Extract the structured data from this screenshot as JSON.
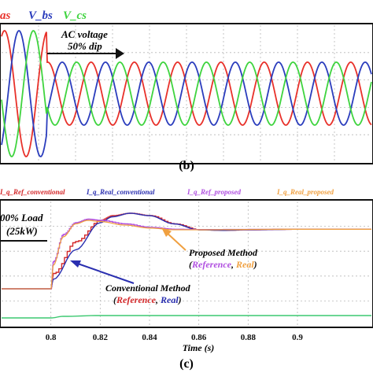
{
  "colors": {
    "phase_a": "#e8312a",
    "phase_b": "#2b3dbd",
    "phase_c": "#3fd43f",
    "ref_conventional": "#d4282a",
    "real_conventional": "#2a2fb0",
    "ref_proposed": "#b04fe0",
    "real_proposed": "#f0a040",
    "bottom_trace": "#3cc870",
    "arrow": "#111111"
  },
  "top_panel": {
    "legend": {
      "vas": "as",
      "vbs": "V_bs",
      "vcs": "V_cs"
    },
    "annotation": {
      "line1": "AC voltage",
      "line2": "50% dip"
    },
    "caption": "(b)"
  },
  "bottom_panel": {
    "legend": {
      "ref_conventional": "I_q_Ref_conventional",
      "real_conventional": "I_q_Real_conventional",
      "ref_proposed": "I_q_Ref_proposed",
      "real_proposed": "I_q_Real_proposed"
    },
    "load_label": {
      "line1": "00% Load",
      "line2": "(25kW)"
    },
    "proposed_label": {
      "line1": "Proposed Method",
      "open": "(",
      "ref": "Reference",
      "sep": ", ",
      "real": "Real",
      "close": ")"
    },
    "conventional_label": {
      "line1": "Conventional Method",
      "open": "(",
      "ref": "Reference",
      "sep": ", ",
      "real": "Real",
      "close": ")"
    },
    "xlabel": "Time (s)",
    "caption": "(c)"
  },
  "chart_data": [
    {
      "type": "line",
      "description_units": "three-phase voltages, arbitrary units",
      "series": [
        {
          "name": "V_as",
          "shape": "sinusoid",
          "amplitude_before": 1.0,
          "amplitude_after": 0.5,
          "phase_deg": 0
        },
        {
          "name": "V_bs",
          "shape": "sinusoid",
          "amplitude_before": 1.0,
          "amplitude_after": 0.5,
          "phase_deg": -120
        },
        {
          "name": "V_cs",
          "shape": "sinusoid",
          "amplitude_before": 1.0,
          "amplitude_after": 0.5,
          "phase_deg": 120
        }
      ],
      "dip_fraction": 0.5
    },
    {
      "type": "line",
      "xlim": [
        0.78,
        0.93
      ],
      "xticks": [
        0.8,
        0.82,
        0.84,
        0.86,
        0.88,
        0.9
      ],
      "xlabel": "Time (s)",
      "step_time": 0.8,
      "series": [
        {
          "name": "I_q_Ref_conventional",
          "x": [
            0.78,
            0.8,
            0.801,
            0.81,
            0.82,
            0.825,
            0.832,
            0.84,
            0.85,
            0.86,
            0.87,
            0.88,
            0.9,
            0.93
          ],
          "y": [
            0.22,
            0.22,
            0.35,
            0.62,
            0.8,
            0.84,
            0.86,
            0.84,
            0.77,
            0.72,
            0.715,
            0.72,
            0.725,
            0.725
          ]
        },
        {
          "name": "I_q_Real_conventional",
          "x": [
            0.78,
            0.8,
            0.801,
            0.81,
            0.82,
            0.825,
            0.832,
            0.84,
            0.85,
            0.86,
            0.87,
            0.88,
            0.9,
            0.93
          ],
          "y": [
            0.22,
            0.22,
            0.3,
            0.55,
            0.78,
            0.83,
            0.86,
            0.84,
            0.77,
            0.72,
            0.715,
            0.72,
            0.725,
            0.725
          ]
        },
        {
          "name": "I_q_Ref_proposed",
          "x": [
            0.78,
            0.8,
            0.801,
            0.805,
            0.81,
            0.815,
            0.82,
            0.83,
            0.84,
            0.85,
            0.86,
            0.9,
            0.93
          ],
          "y": [
            0.22,
            0.22,
            0.45,
            0.68,
            0.78,
            0.81,
            0.8,
            0.77,
            0.74,
            0.725,
            0.722,
            0.725,
            0.725
          ]
        },
        {
          "name": "I_q_Real_proposed",
          "x": [
            0.78,
            0.8,
            0.801,
            0.805,
            0.81,
            0.815,
            0.82,
            0.83,
            0.84,
            0.85,
            0.86,
            0.9,
            0.93
          ],
          "y": [
            0.22,
            0.22,
            0.42,
            0.66,
            0.77,
            0.8,
            0.79,
            0.76,
            0.735,
            0.72,
            0.72,
            0.725,
            0.725
          ]
        },
        {
          "name": "bottom_trace",
          "x": [
            0.78,
            0.8,
            0.805,
            0.82,
            0.93
          ],
          "y": [
            0.0,
            0.0,
            0.02,
            0.03,
            0.03
          ]
        }
      ]
    }
  ]
}
